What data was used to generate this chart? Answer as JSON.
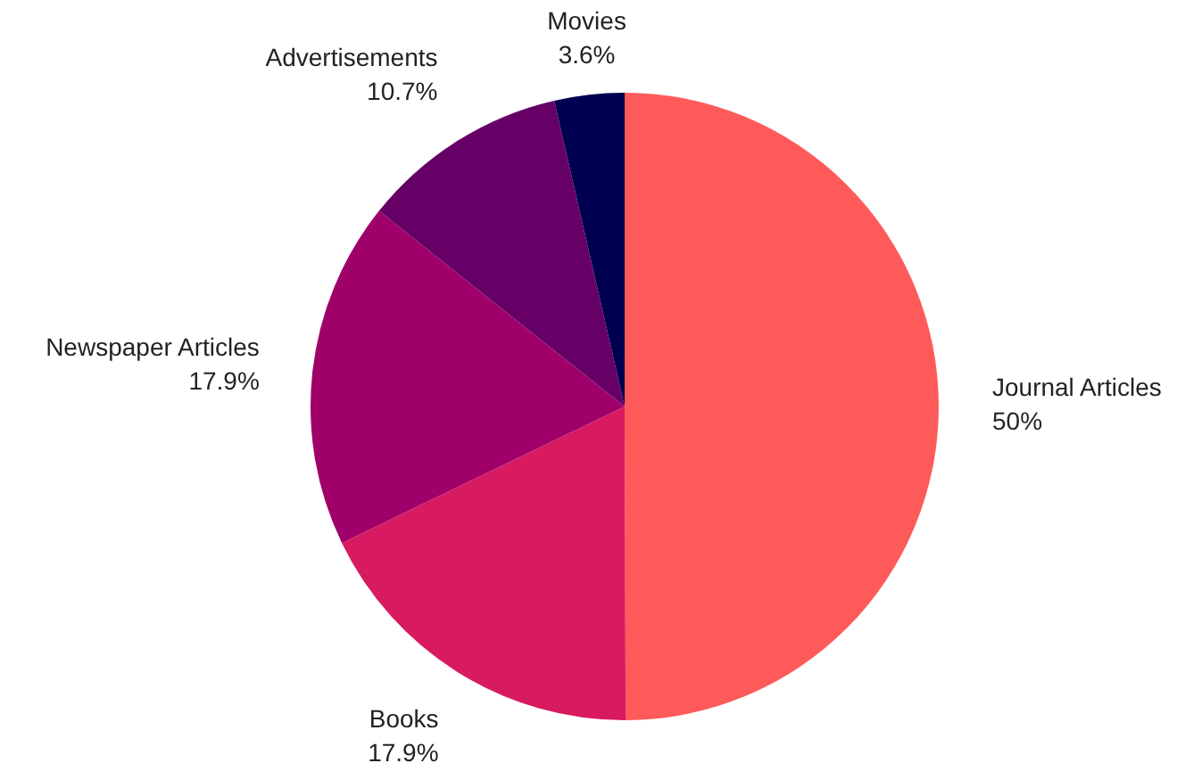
{
  "chart_data": {
    "type": "pie",
    "categories": [
      "Journal Articles",
      "Books",
      "Newspaper Articles",
      "Advertisements",
      "Movies"
    ],
    "values": [
      50,
      17.9,
      17.9,
      10.7,
      3.6
    ],
    "value_labels": [
      "50%",
      "17.9%",
      "17.9%",
      "10.7%",
      "3.6%"
    ],
    "colors": [
      "#ff5a5a",
      "#d81b60",
      "#a0006a",
      "#660066",
      "#000050"
    ],
    "legend": false
  }
}
